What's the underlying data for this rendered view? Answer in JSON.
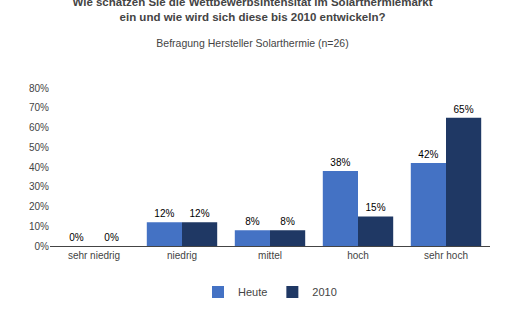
{
  "chart_data": {
    "type": "bar",
    "title": "Wie schätzen Sie die Wettbewerbsintensität im Solarthermiemarkt\nein und wie wird sich diese bis 2010 entwickeln?",
    "subtitle": "Befragung Hersteller Solarthermie (n=26)",
    "categories": [
      "sehr niedrig",
      "niedrig",
      "mittel",
      "hoch",
      "sehr hoch"
    ],
    "series": [
      {
        "name": "Heute",
        "color": "#4472C4",
        "values": [
          0,
          12,
          8,
          38,
          42
        ],
        "value_labels": [
          "0%",
          "12%",
          "8%",
          "38%",
          "42%"
        ]
      },
      {
        "name": "2010",
        "color": "#1F3864",
        "values": [
          0,
          12,
          8,
          15,
          65
        ],
        "value_labels": [
          "0%",
          "12%",
          "8%",
          "15%",
          "65%"
        ]
      }
    ],
    "ylim": [
      0,
      80
    ],
    "yticks": [
      {
        "value": 0,
        "label": "0%"
      },
      {
        "value": 10,
        "label": "10%"
      },
      {
        "value": 20,
        "label": "20%"
      },
      {
        "value": 30,
        "label": "30%"
      },
      {
        "value": 40,
        "label": "40%"
      },
      {
        "value": 50,
        "label": "50%"
      },
      {
        "value": 60,
        "label": "60%"
      },
      {
        "value": 70,
        "label": "70%"
      },
      {
        "value": 80,
        "label": "80%"
      }
    ],
    "data_labels": true,
    "grid": false,
    "legend": "bottom"
  }
}
